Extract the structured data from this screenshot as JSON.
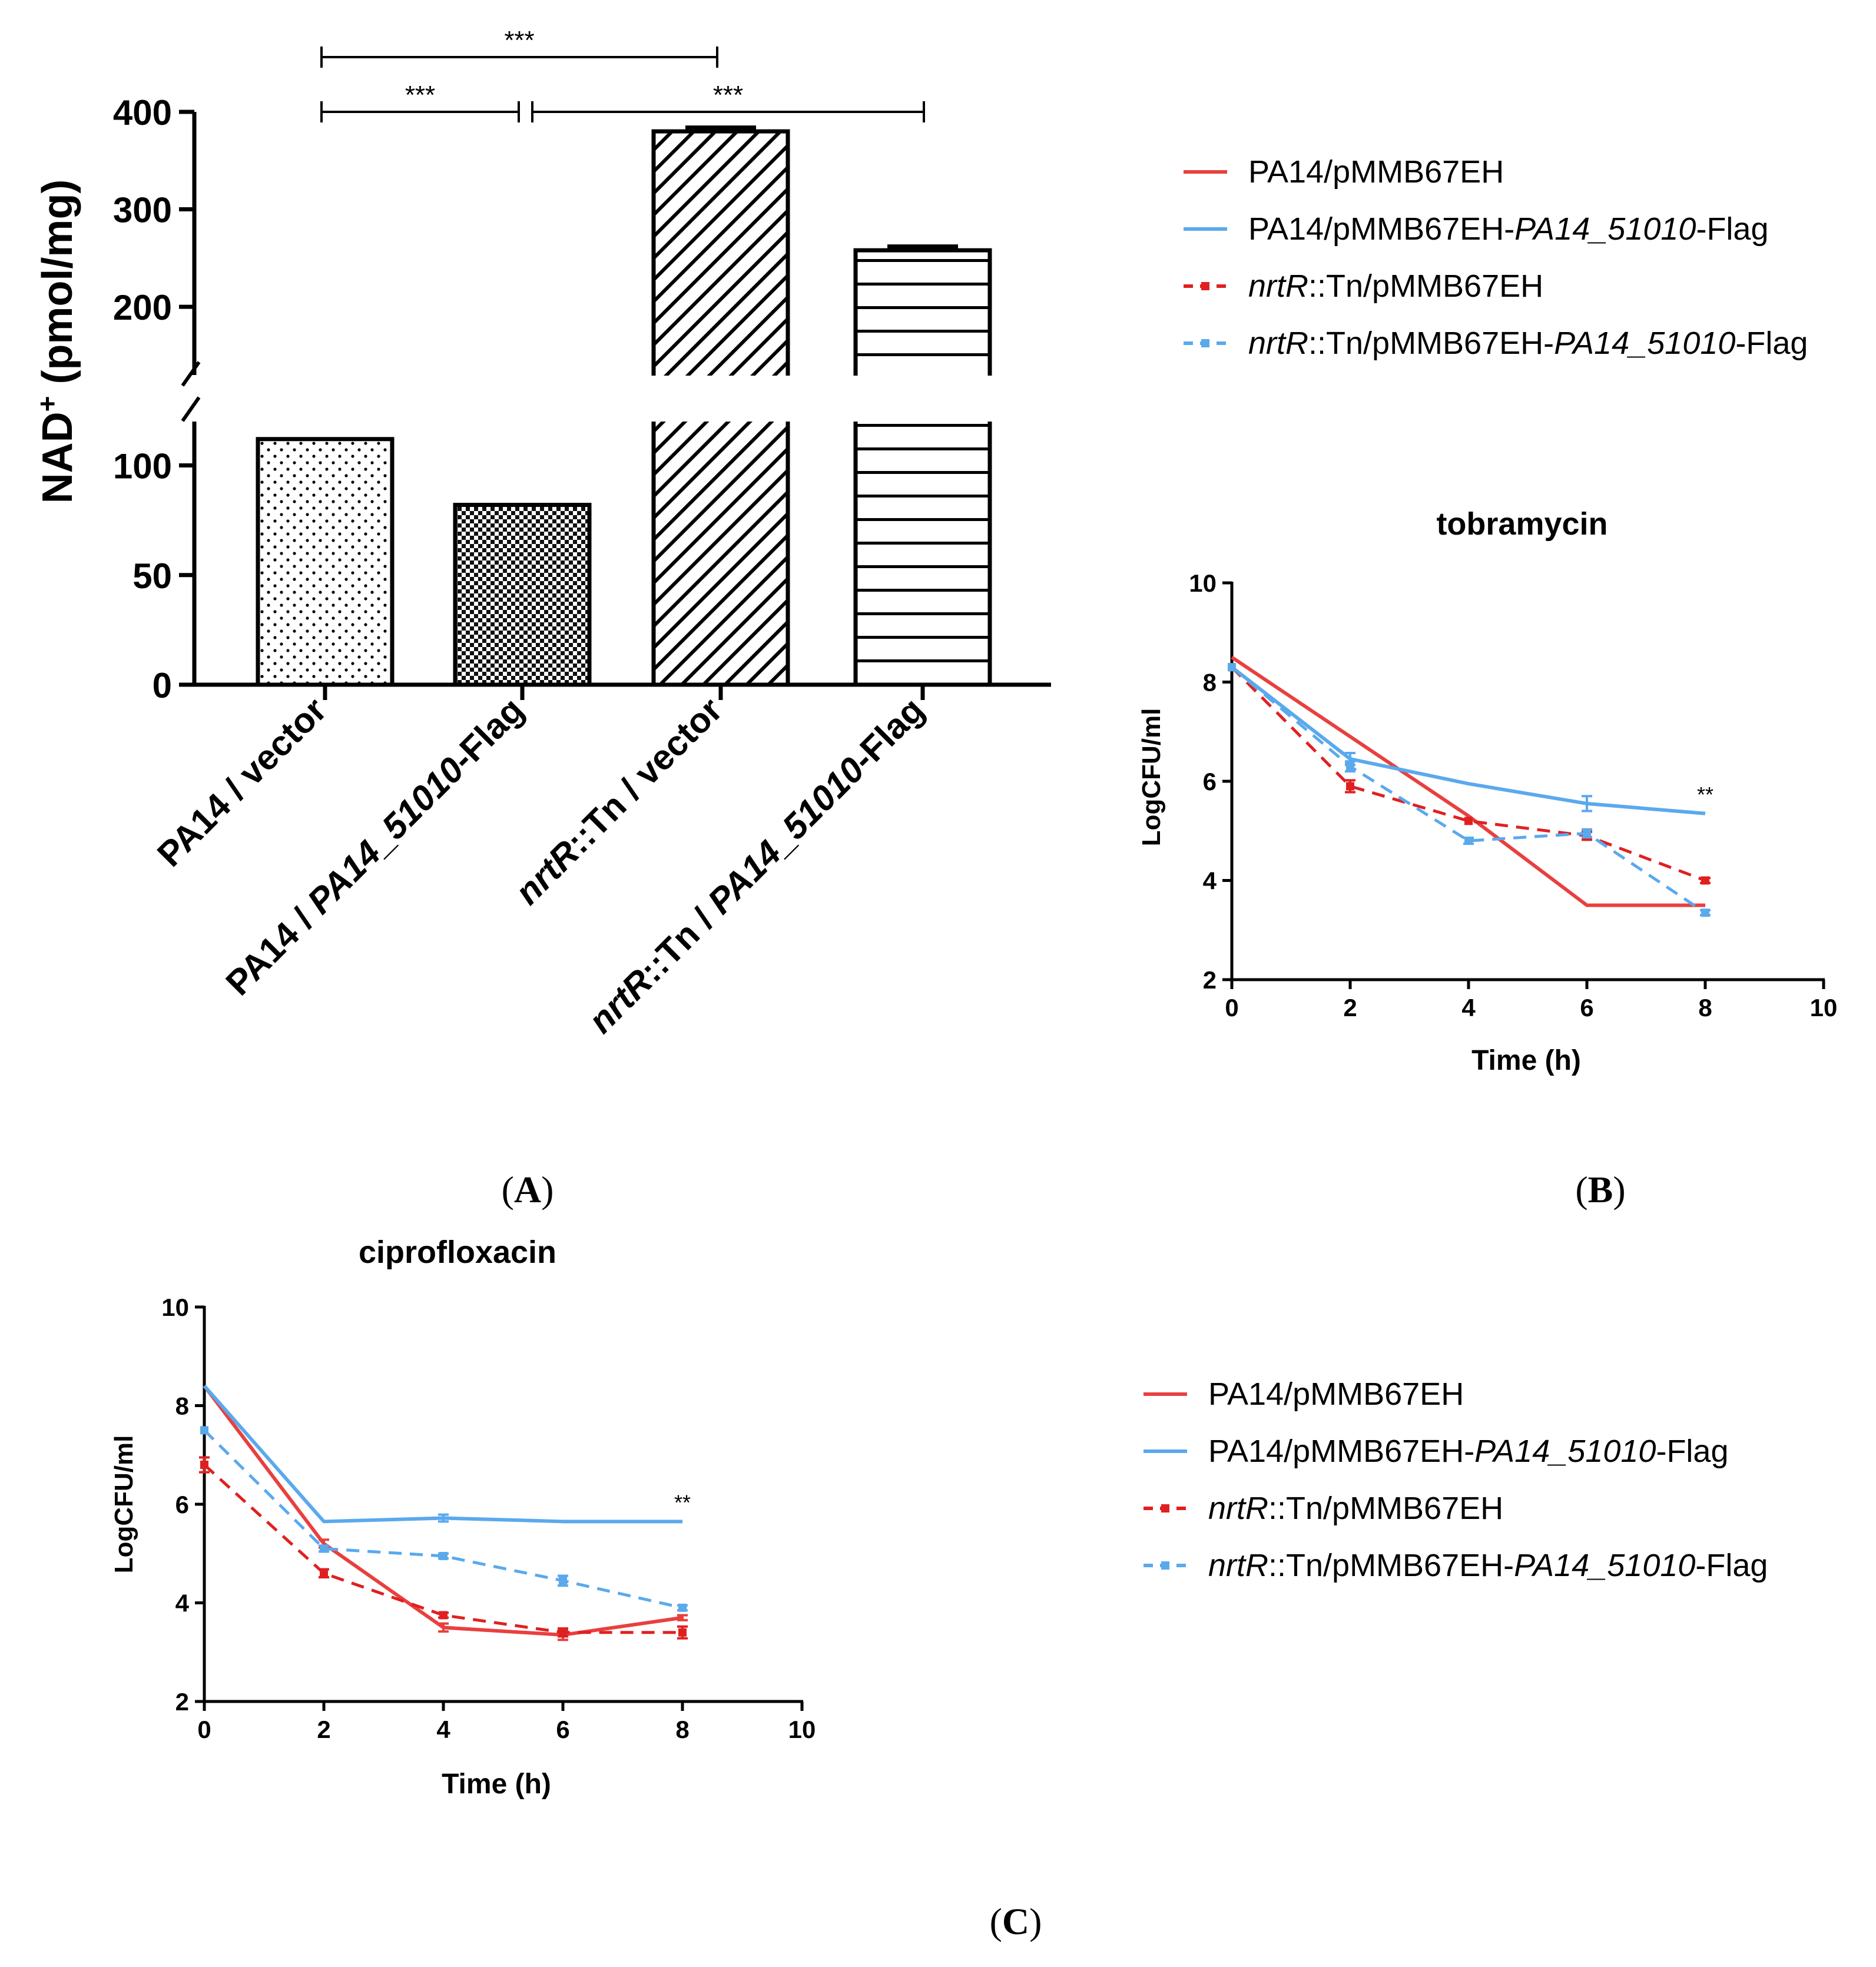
{
  "chart_data": [
    {
      "panel": "A",
      "type": "bar",
      "ylabel_main": "NAD",
      "ylabel_sup": "+",
      "ylabel_unit": " (pmol/mg)",
      "ylim_lower": [
        0,
        120
      ],
      "ylim_upper": [
        130,
        400
      ],
      "axis_break": "between 120 and 130",
      "yticks": [
        "0",
        "50",
        "100",
        "200",
        "300",
        "400"
      ],
      "categories": [
        [
          {
            "t": "PA14 / vector",
            "i": false
          }
        ],
        [
          {
            "t": "PA14 / ",
            "i": false
          },
          {
            "t": "PA14_51010",
            "i": true
          },
          {
            "t": "-Flag",
            "i": false
          }
        ],
        [
          {
            "t": "nrtR",
            "i": true
          },
          {
            "t": "::Tn / vector",
            "i": false
          }
        ],
        [
          {
            "t": "nrtR",
            "i": true
          },
          {
            "t": "::Tn / ",
            "i": false
          },
          {
            "t": "PA14_51010",
            "i": true
          },
          {
            "t": "-Flag",
            "i": false
          }
        ]
      ],
      "values": [
        112,
        82,
        380,
        258
      ],
      "errors": [
        0,
        0,
        3,
        3
      ],
      "patterns": [
        "dots",
        "checker",
        "diagonal",
        "horizontal"
      ],
      "significance": [
        {
          "from": 0,
          "to": 1,
          "label": "***"
        },
        {
          "from": 1,
          "to": 3,
          "label": "***"
        },
        {
          "from": 0,
          "to": 2,
          "label": "***"
        }
      ]
    },
    {
      "panel": "B",
      "type": "line",
      "title": "tobramycin",
      "xlabel": "Time (h)",
      "ylabel": "LogCFU/ml",
      "xlim": [
        0,
        10
      ],
      "ylim": [
        2,
        10
      ],
      "xticks": [
        "0",
        "2",
        "4",
        "6",
        "8",
        "10"
      ],
      "yticks": [
        "2",
        "4",
        "6",
        "8",
        "10"
      ],
      "x": [
        0,
        2,
        4,
        6,
        8
      ],
      "annotation": "**",
      "series": [
        {
          "name": "PA14/pMMB67EH",
          "color": "#e8403f",
          "dashed": false,
          "markers": false,
          "values": [
            8.5,
            6.9,
            5.3,
            3.5,
            3.5
          ],
          "errors": [
            0,
            0,
            0,
            0,
            0
          ]
        },
        {
          "name": "PA14/pMMB67EH-PA14_51010-Flag",
          "color": "#5aa9ed",
          "dashed": false,
          "markers": false,
          "values": [
            8.3,
            6.45,
            5.95,
            5.55,
            5.35
          ],
          "errors": [
            0,
            0.12,
            0,
            0.15,
            0
          ]
        },
        {
          "name": "nrtR::Tn/pMMB67EH",
          "color": "#e02020",
          "dashed": true,
          "markers": true,
          "values": [
            8.3,
            5.9,
            5.2,
            4.9,
            4.0
          ],
          "errors": [
            0,
            0.12,
            0,
            0.08,
            0.05
          ]
        },
        {
          "name": "nrtR::Tn/pMMB67EH-PA14_51010-Flag",
          "color": "#5aa9ed",
          "dashed": true,
          "markers": true,
          "values": [
            8.3,
            6.3,
            4.8,
            4.95,
            3.35
          ],
          "errors": [
            0,
            0.1,
            0.06,
            0.08,
            0.05
          ]
        }
      ]
    },
    {
      "panel": "C",
      "type": "line",
      "title": "ciprofloxacin",
      "xlabel": "Time (h)",
      "ylabel": "LogCFU/ml",
      "xlim": [
        0,
        10
      ],
      "ylim": [
        2,
        10
      ],
      "xticks": [
        "0",
        "2",
        "4",
        "6",
        "8",
        "10"
      ],
      "yticks": [
        "2",
        "4",
        "6",
        "8",
        "10"
      ],
      "x": [
        0,
        2,
        4,
        6,
        8
      ],
      "annotation": "**",
      "series": [
        {
          "name": "PA14/pMMB67EH",
          "color": "#e8403f",
          "dashed": false,
          "markers": false,
          "values": [
            8.4,
            5.2,
            3.5,
            3.35,
            3.7
          ],
          "errors": [
            0,
            0.08,
            0.08,
            0.1,
            0.05
          ]
        },
        {
          "name": "PA14/pMMB67EH-PA14_51010-Flag",
          "color": "#5aa9ed",
          "dashed": false,
          "markers": false,
          "values": [
            8.4,
            5.65,
            5.72,
            5.65,
            5.65
          ],
          "errors": [
            0,
            0,
            0.07,
            0,
            0
          ]
        },
        {
          "name": "nrtR::Tn/pMMB67EH",
          "color": "#e02020",
          "dashed": true,
          "markers": true,
          "values": [
            6.8,
            4.6,
            3.75,
            3.4,
            3.4
          ],
          "errors": [
            0.15,
            0.08,
            0.05,
            0.08,
            0.12
          ]
        },
        {
          "name": "nrtR::Tn/pMMB67EH-PA14_51010-Flag",
          "color": "#5aa9ed",
          "dashed": true,
          "markers": true,
          "values": [
            7.5,
            5.1,
            4.95,
            4.45,
            3.9
          ],
          "errors": [
            0,
            0.06,
            0.05,
            0.1,
            0.05
          ]
        }
      ]
    }
  ],
  "legend_entries": [
    [
      {
        "t": "PA14/pMMB67EH",
        "i": false
      }
    ],
    [
      {
        "t": "PA14/pMMB67EH-",
        "i": false
      },
      {
        "t": "PA14_51010",
        "i": true
      },
      {
        "t": "-Flag",
        "i": false
      }
    ],
    [
      {
        "t": "nrtR",
        "i": true
      },
      {
        "t": "::Tn/pMMB67EH",
        "i": false
      }
    ],
    [
      {
        "t": "nrtR",
        "i": true
      },
      {
        "t": "::Tn/pMMB67EH-",
        "i": false
      },
      {
        "t": "PA14_51010",
        "i": true
      },
      {
        "t": "-Flag",
        "i": false
      }
    ]
  ],
  "captions": {
    "a": "A",
    "b": "B",
    "c": "C"
  }
}
